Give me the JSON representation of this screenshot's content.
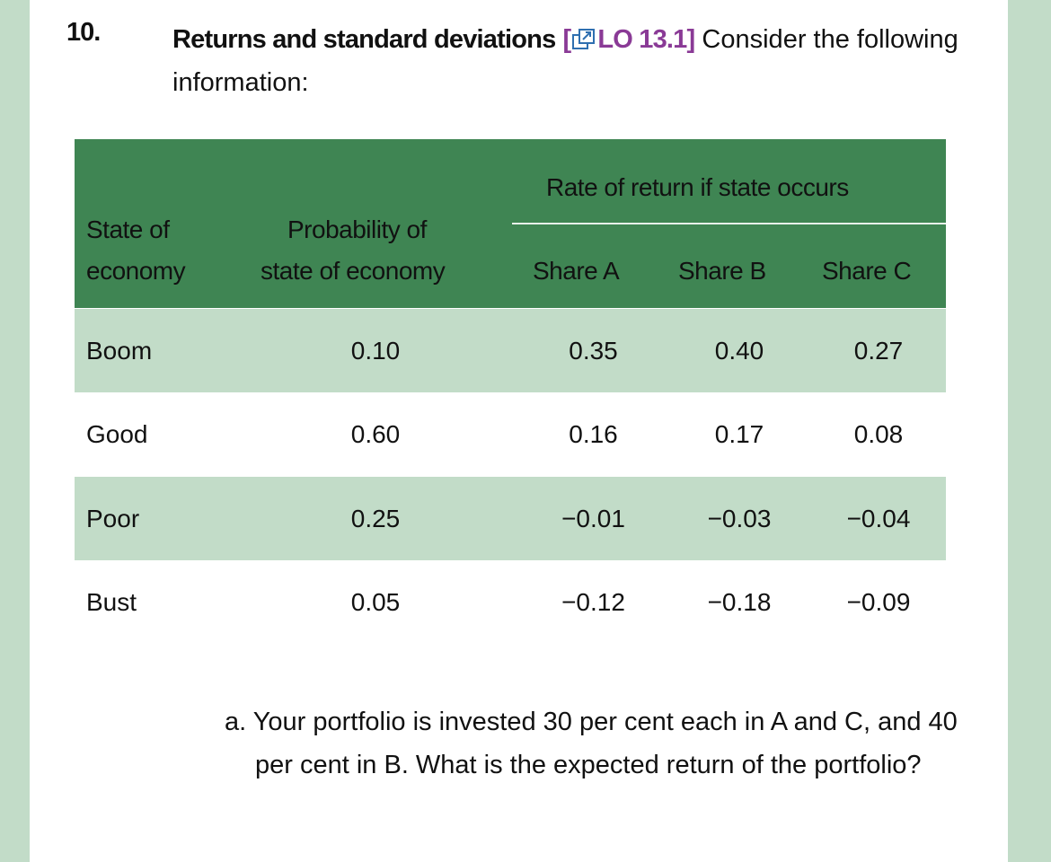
{
  "question": {
    "number": "10.",
    "title": "Returns and standard deviations",
    "lo_open": "[",
    "lo": "LO 13.1",
    "lo_close": "]",
    "text": " Consider the following information:"
  },
  "table": {
    "header": {
      "group": "Rate of return if state occurs",
      "state_l1": "State of",
      "state_l2": "economy",
      "prob_l1": "Probability of",
      "prob_l2": "state of economy",
      "a": "Share A",
      "b": "Share B",
      "c": "Share C"
    },
    "rows": [
      {
        "state": "Boom",
        "prob": "0.10",
        "a": "0.35",
        "b": "0.40",
        "c": "0.27"
      },
      {
        "state": "Good",
        "prob": "0.60",
        "a": "0.16",
        "b": "0.17",
        "c": "0.08"
      },
      {
        "state": "Poor",
        "prob": "0.25",
        "a": "−0.01",
        "b": "−0.03",
        "c": "−0.04"
      },
      {
        "state": "Bust",
        "prob": "0.05",
        "a": "−0.12",
        "b": "−0.18",
        "c": "−0.09"
      }
    ]
  },
  "part_a": "a. Your portfolio is invested 30 per cent each in A and C, and 40 per cent in B. What is the expected return of the portfolio?",
  "colors": {
    "header": "#3f8553",
    "band": "#c2dcc8",
    "lo": "#8a3a96"
  }
}
